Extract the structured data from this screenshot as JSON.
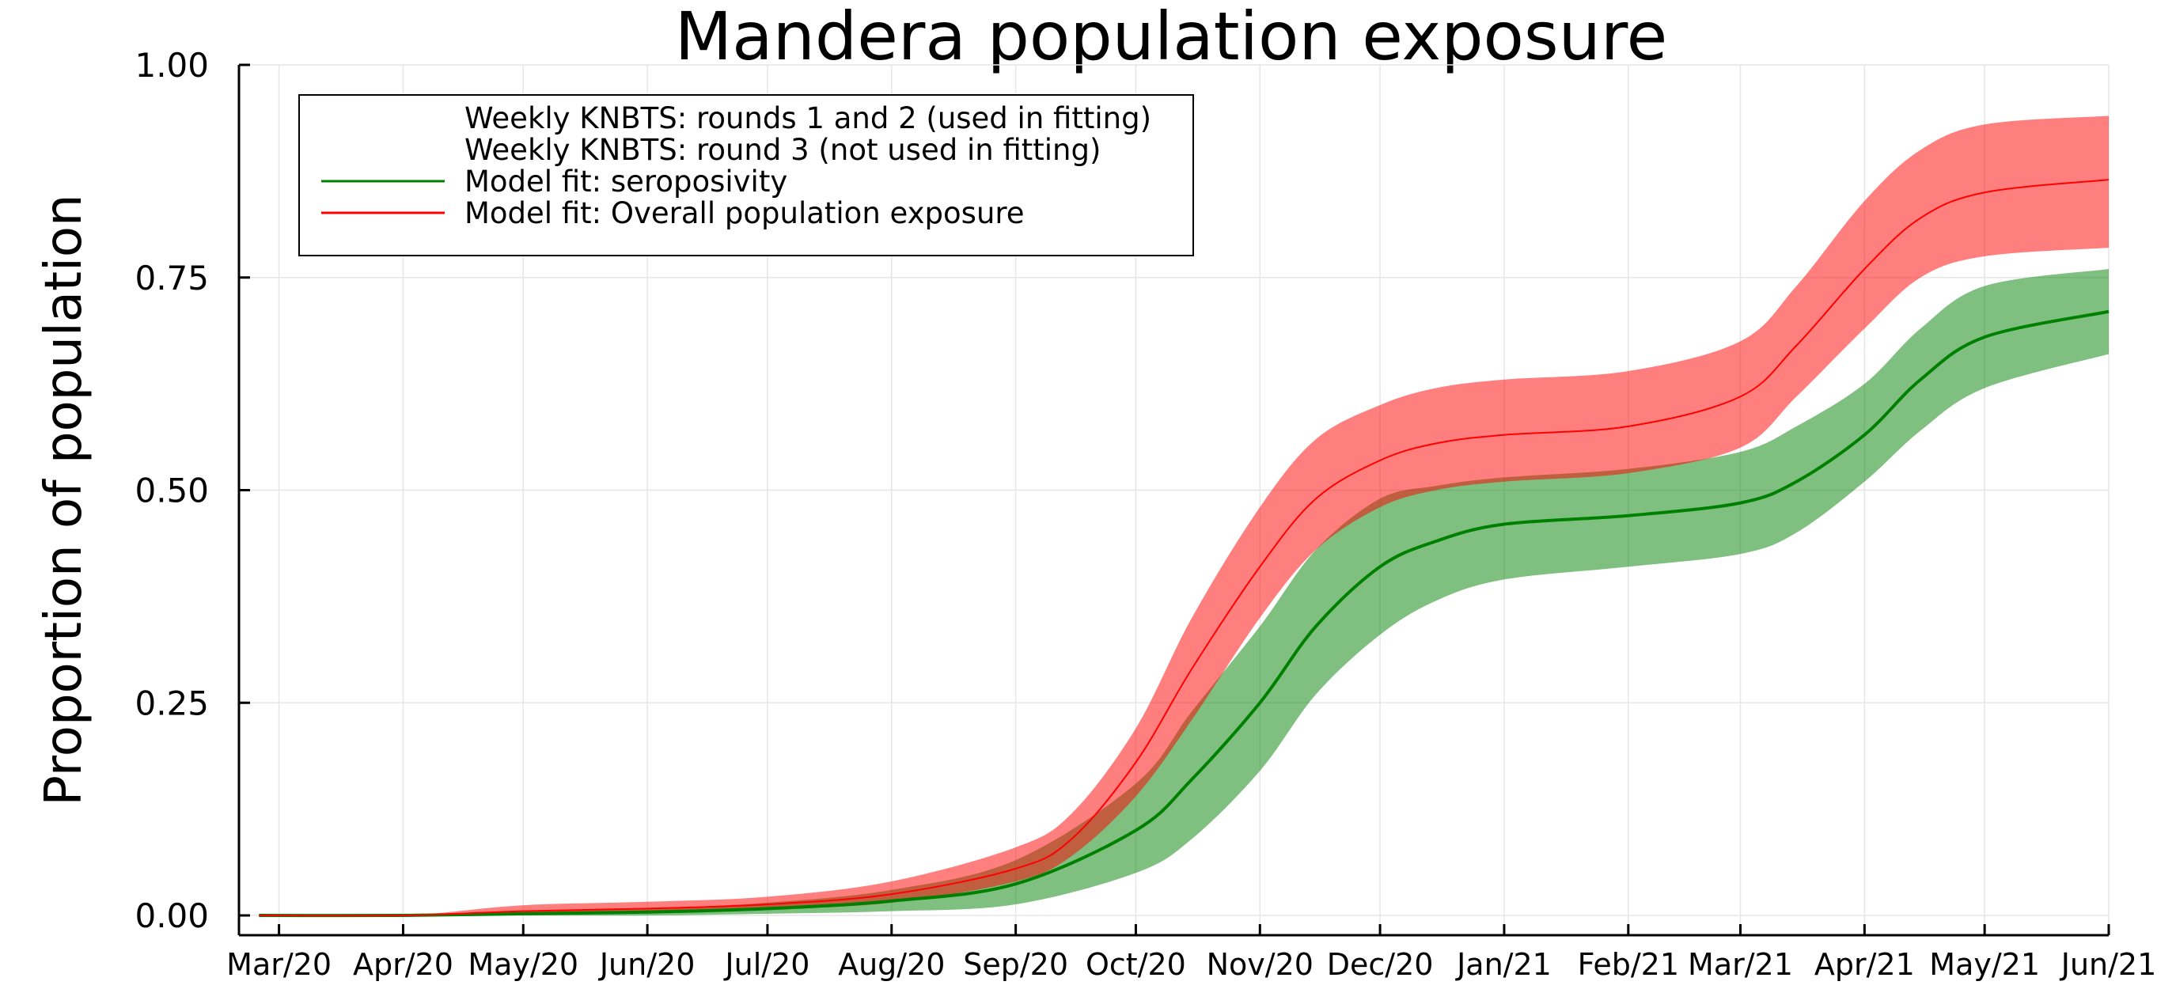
{
  "chart_data": {
    "type": "line",
    "title": "Mandera population exposure",
    "ylabel": "Proportion of population",
    "xlabel": "",
    "ylim": [
      0,
      1
    ],
    "yticks": [
      0,
      0.25,
      0.5,
      0.75,
      1.0
    ],
    "ytick_labels": [
      "0.00",
      "0.25",
      "0.50",
      "0.75",
      "1.00"
    ],
    "xlim": [
      "2020-02-20",
      "2021-06-01"
    ],
    "xticks": [
      "2020-03-01",
      "2020-04-01",
      "2020-05-01",
      "2020-06-01",
      "2020-07-01",
      "2020-08-01",
      "2020-09-01",
      "2020-10-01",
      "2020-11-01",
      "2020-12-01",
      "2021-01-01",
      "2021-02-01",
      "2021-03-01",
      "2021-04-01",
      "2021-05-01",
      "2021-06-01"
    ],
    "xtick_labels": [
      "Mar/20",
      "Apr/20",
      "May/20",
      "Jun/20",
      "Jul/20",
      "Aug/20",
      "Sep/20",
      "Oct/20",
      "Nov/20",
      "Dec/20",
      "Jan/21",
      "Feb/21",
      "Mar/21",
      "Apr/21",
      "May/21",
      "Jun/21"
    ],
    "grid": true,
    "legend_position": "top-left",
    "legend": [
      {
        "label": "Weekly KNBTS: rounds 1 and 2 (used in fitting)",
        "color": "",
        "line": false
      },
      {
        "label": "Weekly KNBTS: round 3 (not used in fitting)",
        "color": "",
        "line": false
      },
      {
        "label": "Model fit: seroposivity",
        "color": "#008000",
        "line": true
      },
      {
        "label": "Model fit: Overall population exposure",
        "color": "#ff0000",
        "line": true
      }
    ],
    "series": [
      {
        "name": "Model fit: seroposivity",
        "color": "#008000",
        "band_color": "#008000",
        "band_opacity": 0.5,
        "line_width": 4,
        "x": [
          "2020-02-25",
          "2020-04-01",
          "2020-05-01",
          "2020-06-01",
          "2020-07-01",
          "2020-08-01",
          "2020-09-01",
          "2020-10-01",
          "2020-10-15",
          "2020-11-01",
          "2020-11-15",
          "2020-12-01",
          "2020-12-15",
          "2021-01-01",
          "2021-02-01",
          "2021-03-01",
          "2021-03-15",
          "2021-04-01",
          "2021-04-15",
          "2021-05-01",
          "2021-06-01"
        ],
        "y": [
          0.0,
          0.0,
          0.002,
          0.004,
          0.008,
          0.017,
          0.037,
          0.1,
          0.16,
          0.25,
          0.34,
          0.41,
          0.44,
          0.46,
          0.47,
          0.485,
          0.51,
          0.565,
          0.63,
          0.68,
          0.71
        ],
        "lower": [
          0.0,
          0.0,
          0.0,
          0.0,
          0.002,
          0.005,
          0.013,
          0.05,
          0.09,
          0.17,
          0.26,
          0.33,
          0.37,
          0.395,
          0.41,
          0.425,
          0.45,
          0.51,
          0.57,
          0.62,
          0.66
        ],
        "upper": [
          0.0,
          0.0,
          0.004,
          0.008,
          0.015,
          0.03,
          0.065,
          0.155,
          0.24,
          0.34,
          0.43,
          0.49,
          0.505,
          0.515,
          0.525,
          0.545,
          0.575,
          0.625,
          0.69,
          0.74,
          0.76
        ]
      },
      {
        "name": "Model fit: Overall population exposure",
        "color": "#ff0000",
        "band_color": "#ff0000",
        "band_opacity": 0.5,
        "line_width": 2,
        "x": [
          "2020-02-25",
          "2020-04-01",
          "2020-05-01",
          "2020-06-01",
          "2020-07-01",
          "2020-08-01",
          "2020-09-01",
          "2020-09-15",
          "2020-10-01",
          "2020-10-15",
          "2020-11-01",
          "2020-11-15",
          "2020-12-01",
          "2020-12-15",
          "2021-01-01",
          "2021-02-01",
          "2021-03-01",
          "2021-03-15",
          "2021-04-01",
          "2021-04-15",
          "2021-05-01",
          "2021-06-01"
        ],
        "y": [
          0.0,
          0.0,
          0.005,
          0.008,
          0.013,
          0.025,
          0.055,
          0.09,
          0.18,
          0.29,
          0.41,
          0.49,
          0.535,
          0.555,
          0.565,
          0.575,
          0.61,
          0.67,
          0.76,
          0.82,
          0.85,
          0.865
        ],
        "lower": [
          0.0,
          0.0,
          0.002,
          0.004,
          0.007,
          0.015,
          0.04,
          0.07,
          0.14,
          0.23,
          0.35,
          0.43,
          0.48,
          0.5,
          0.51,
          0.52,
          0.55,
          0.61,
          0.69,
          0.75,
          0.775,
          0.785
        ],
        "upper": [
          0.0,
          0.0,
          0.012,
          0.016,
          0.022,
          0.04,
          0.08,
          0.12,
          0.22,
          0.35,
          0.48,
          0.56,
          0.6,
          0.62,
          0.63,
          0.64,
          0.675,
          0.74,
          0.84,
          0.9,
          0.93,
          0.94
        ]
      }
    ]
  }
}
